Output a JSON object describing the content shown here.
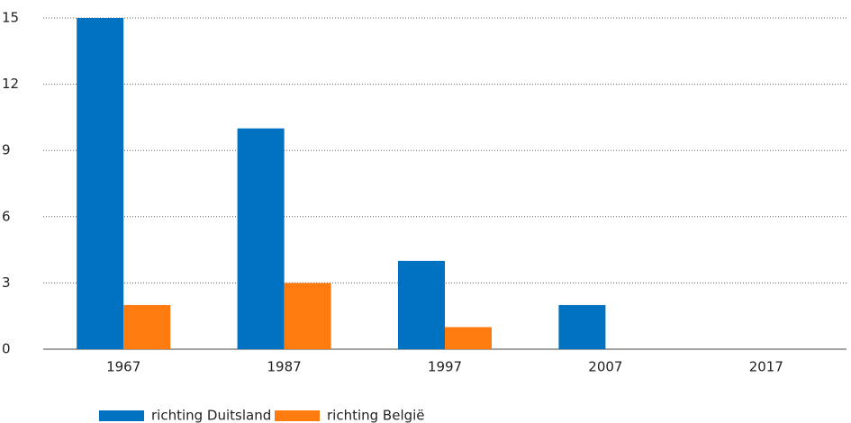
{
  "chart_data": {
    "type": "bar",
    "categories": [
      "1967",
      "1987",
      "1997",
      "2007",
      "2017"
    ],
    "series": [
      {
        "name": "richting Duitsland",
        "color": "#0072c1",
        "values": [
          15,
          10,
          4,
          2,
          0
        ]
      },
      {
        "name": "richting België",
        "color": "#ff7b0f",
        "values": [
          2,
          3,
          1,
          0,
          0
        ]
      }
    ],
    "ylim": [
      0,
      15
    ],
    "yticks": [
      0,
      3,
      6,
      9,
      12,
      15
    ],
    "grid": true,
    "legend": "bottom"
  }
}
